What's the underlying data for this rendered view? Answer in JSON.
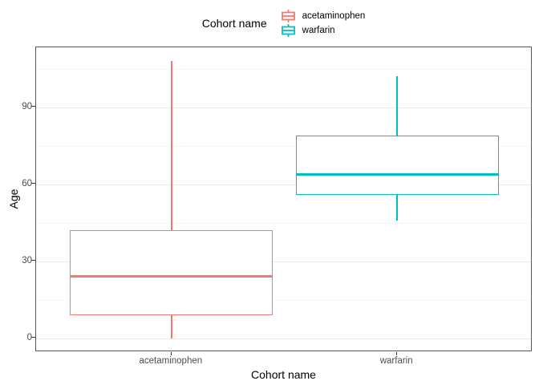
{
  "chart_data": {
    "type": "boxplot",
    "legend_title": "Cohort name",
    "xlabel": "Cohort name",
    "ylabel": "Age",
    "x_categories": [
      "acetaminophen",
      "warfarin"
    ],
    "y_major_ticks": [
      0,
      30,
      60,
      90
    ],
    "y_minor_ticks": [
      15,
      45,
      75,
      105
    ],
    "y_range": [
      -5.4,
      113.4
    ],
    "legend_position": "top",
    "grid": "on",
    "series": [
      {
        "name": "acetaminophen",
        "color": "#F8766D",
        "min": 0,
        "q1": 9,
        "median": 24,
        "q3": 42,
        "max": 108
      },
      {
        "name": "warfarin",
        "color": "#00BFC4",
        "min": 46,
        "q1": 56,
        "median": 64,
        "q3": 79,
        "max": 102
      }
    ],
    "colors": {
      "grid_major": "#ebebeb",
      "grid_minor": "#f6f6f6",
      "panel_border": "#595959",
      "tick_label": "#4d4d4d",
      "tick_mark": "#333333",
      "background": "#ffffff"
    }
  }
}
